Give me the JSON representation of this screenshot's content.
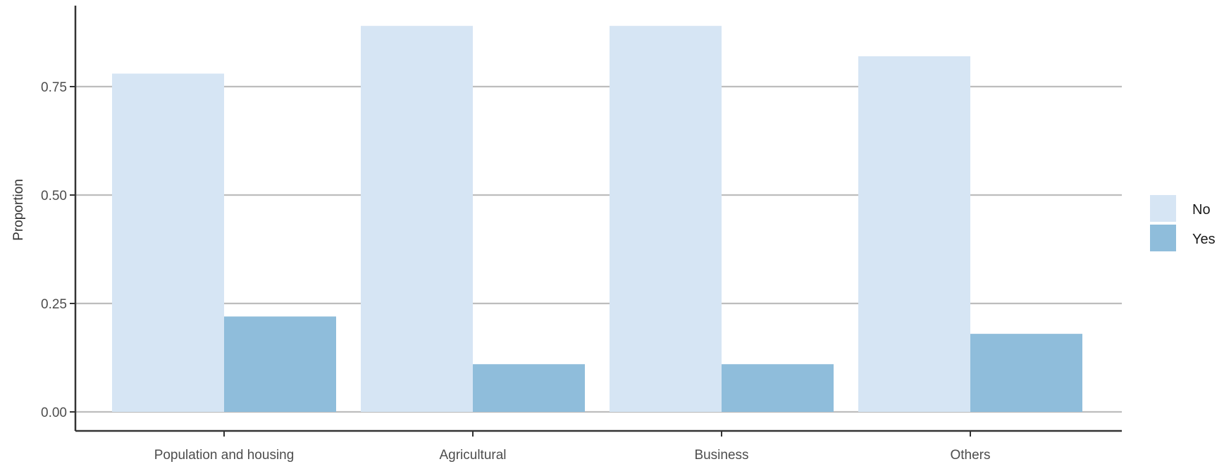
{
  "chart_data": {
    "type": "bar",
    "title": "",
    "xlabel": "",
    "ylabel": "Proportion",
    "categories": [
      "Population and housing",
      "Agricultural",
      "Business",
      "Others"
    ],
    "series": [
      {
        "name": "No",
        "values": [
          0.78,
          0.89,
          0.89,
          0.82
        ],
        "color": "#d6e5f4"
      },
      {
        "name": "Yes",
        "values": [
          0.22,
          0.11,
          0.11,
          0.18
        ],
        "color": "#8fbddb"
      }
    ],
    "ylim": [
      0,
      0.92
    ],
    "yticks": [
      0.0,
      0.25,
      0.5,
      0.75
    ],
    "ytick_labels": [
      "0.00",
      "0.25",
      "0.50",
      "0.75"
    ],
    "grid": "horizontal-major",
    "legend_position": "right"
  }
}
